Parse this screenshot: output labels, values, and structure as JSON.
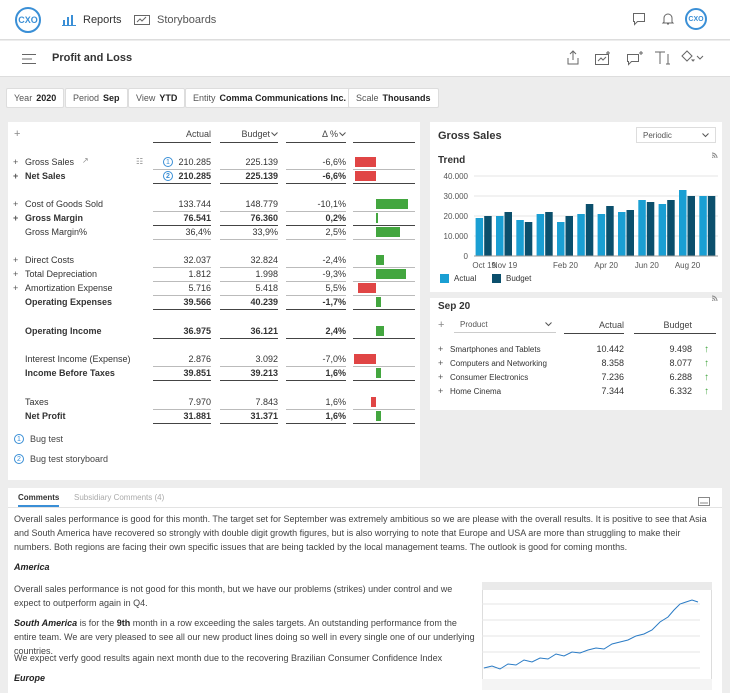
{
  "app": {
    "logo": "CXO",
    "avatar": "CXO"
  },
  "nav": {
    "tabs": [
      {
        "label": "Reports",
        "icon": "bar-chart-icon",
        "active": true
      },
      {
        "label": "Storyboards",
        "icon": "storyboard-icon",
        "active": false
      }
    ]
  },
  "header": {
    "title": "Profit and Loss"
  },
  "filters": [
    {
      "label": "Year",
      "value": "2020"
    },
    {
      "label": "Period",
      "value": "Sep"
    },
    {
      "label": "View",
      "value": "YTD"
    },
    {
      "label": "Entity",
      "value": "Comma Communications Inc."
    },
    {
      "label": "Scale",
      "value": "Thousands"
    }
  ],
  "pl": {
    "columns": {
      "actual": "Actual",
      "budget": "Budget",
      "delta": "Δ %"
    },
    "rows": [
      {
        "label": "Gross Sales",
        "actual": "210.285",
        "budget": "225.139",
        "delta": "-6,6%",
        "bold": false,
        "prefix": "+",
        "badge": "1",
        "bar": -0.066
      },
      {
        "label": "Net Sales",
        "actual": "210.285",
        "budget": "225.139",
        "delta": "-6,6%",
        "bold": true,
        "prefix": "+",
        "badge": "2",
        "bar": -0.066
      },
      {
        "label": "Cost of Goods Sold",
        "actual": "133.744",
        "budget": "148.779",
        "delta": "-10,1%",
        "bold": false,
        "prefix": "+",
        "bar": 0.101
      },
      {
        "label": "Gross Margin",
        "actual": "76.541",
        "budget": "76.360",
        "delta": "0,2%",
        "bold": true,
        "prefix": "+",
        "bar": 0.002
      },
      {
        "label": "Gross Margin%",
        "actual": "36,4%",
        "budget": "33,9%",
        "delta": "2,5%",
        "bold": false,
        "prefix": "",
        "bar": 0.074
      },
      {
        "label": "Direct Costs",
        "actual": "32.037",
        "budget": "32.824",
        "delta": "-2,4%",
        "bold": false,
        "prefix": "+",
        "bar": 0.024
      },
      {
        "label": "Total Depreciation",
        "actual": "1.812",
        "budget": "1.998",
        "delta": "-9,3%",
        "bold": false,
        "prefix": "+",
        "bar": 0.093
      },
      {
        "label": "Amortization Expense",
        "actual": "5.716",
        "budget": "5.418",
        "delta": "5,5%",
        "bold": false,
        "prefix": "+",
        "bar": -0.055
      },
      {
        "label": "Operating Expenses",
        "actual": "39.566",
        "budget": "40.239",
        "delta": "-1,7%",
        "bold": true,
        "prefix": "",
        "bar": 0.017
      },
      {
        "label": "Operating Income",
        "actual": "36.975",
        "budget": "36.121",
        "delta": "2,4%",
        "bold": true,
        "prefix": "",
        "bar": 0.024
      },
      {
        "label": "Interest Income (Expense)",
        "actual": "2.876",
        "budget": "3.092",
        "delta": "-7,0%",
        "bold": false,
        "prefix": "",
        "bar": -0.07
      },
      {
        "label": "Income Before Taxes",
        "actual": "39.851",
        "budget": "39.213",
        "delta": "1,6%",
        "bold": true,
        "prefix": "",
        "bar": 0.016
      },
      {
        "label": "Taxes",
        "actual": "7.970",
        "budget": "7.843",
        "delta": "1,6%",
        "bold": false,
        "prefix": "",
        "bar": -0.016
      },
      {
        "label": "Net Profit",
        "actual": "31.881",
        "budget": "31.371",
        "delta": "1,6%",
        "bold": true,
        "prefix": "",
        "bar": 0.016
      }
    ],
    "footnotes": [
      {
        "num": "1",
        "label": "Bug test"
      },
      {
        "num": "2",
        "label": "Bug test storyboard"
      }
    ]
  },
  "gross_sales": {
    "title": "Gross Sales",
    "period_select": "Periodic",
    "trend_title": "Trend",
    "sep_title": "Sep 20",
    "product_select": "Product",
    "table_headers": {
      "actual": "Actual",
      "budget": "Budget"
    },
    "products": [
      {
        "label": "Smartphones and Tablets",
        "actual": "10.442",
        "budget": "9.498"
      },
      {
        "label": "Computers and Networking",
        "actual": "8.358",
        "budget": "8.077"
      },
      {
        "label": "Consumer Electronics",
        "actual": "7.236",
        "budget": "6.288"
      },
      {
        "label": "Home Cinema",
        "actual": "7.344",
        "budget": "6.332"
      }
    ]
  },
  "chart_data": {
    "type": "bar",
    "categories": [
      "Oct 19",
      "Nov 19",
      "Dec 19",
      "Jan 20",
      "Feb 20",
      "Mar 20",
      "Apr 20",
      "May 20",
      "Jun 20",
      "Jul 20",
      "Aug 20",
      "Sep 20"
    ],
    "x_tick_labels": [
      "Oct 19",
      "Nov 19",
      "Feb 20",
      "Apr 20",
      "Jun 20",
      "Aug 20"
    ],
    "series": [
      {
        "name": "Actual",
        "color": "#1a9fd3",
        "values": [
          19000,
          20000,
          18000,
          21000,
          17000,
          21000,
          21000,
          22000,
          28000,
          26000,
          33000,
          30000
        ]
      },
      {
        "name": "Budget",
        "color": "#0b4f6c",
        "values": [
          20000,
          22000,
          17000,
          22000,
          20000,
          26000,
          25000,
          23000,
          27000,
          28000,
          30000,
          30000
        ]
      }
    ],
    "y_ticks": [
      "0",
      "10.000",
      "20.000",
      "30.000",
      "40.000"
    ],
    "ylim": [
      0,
      40000
    ],
    "legend": "bottom-left",
    "grid": true
  },
  "comments": {
    "tabs": [
      "Comments",
      "Subsidiary Comments (4)"
    ],
    "intro": "Overall sales performance is good for this month. The target set for September was extremely ambitious so we are please with the overall results. It is positive to see that Asia and South America have recovered so strongly with double digit growth figures, but is also worrying to note that Europe and USA are more than struggling to make their numbers. Both regions are facing their own specific issues that are being tackled by the local management teams. The outlook is good for coming months.",
    "america_heading": "America",
    "america_text": "Overall sales performance is not good for this month, but we have our problems (strikes) under control and we expect to outperform again in Q4.",
    "sa_bold": "South America",
    "sa_text_1": " is for the ",
    "sa_bold2": "9th",
    "sa_text_2": " month in a row exceeding the sales targets. An outstanding performance from the entire team. We are very pleased to see all our new product lines doing so well in every single one of our underlying countries.",
    "expect_text": "We expect verfy good results again next month due to the recovering Brazilian Consumer Confidence Index",
    "europe_heading": "Europe"
  }
}
